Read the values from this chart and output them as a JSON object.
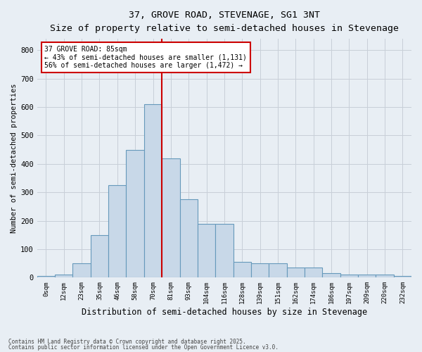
{
  "title": "37, GROVE ROAD, STEVENAGE, SG1 3NT",
  "subtitle": "Size of property relative to semi-detached houses in Stevenage",
  "xlabel": "Distribution of semi-detached houses by size in Stevenage",
  "ylabel": "Number of semi-detached properties",
  "categories": [
    "0sqm",
    "12sqm",
    "23sqm",
    "35sqm",
    "46sqm",
    "58sqm",
    "70sqm",
    "81sqm",
    "93sqm",
    "104sqm",
    "116sqm",
    "128sqm",
    "139sqm",
    "151sqm",
    "162sqm",
    "174sqm",
    "186sqm",
    "197sqm",
    "209sqm",
    "220sqm",
    "232sqm"
  ],
  "values": [
    5,
    10,
    50,
    150,
    325,
    450,
    610,
    420,
    275,
    190,
    190,
    55,
    50,
    50,
    35,
    35,
    15,
    10,
    10,
    10,
    5
  ],
  "bar_color": "#c8d8e8",
  "bar_edge_color": "#6699bb",
  "grid_color": "#c8cfd8",
  "bg_color": "#e8eef4",
  "marker_bin_index": 7,
  "annotation_title": "37 GROVE ROAD: 85sqm",
  "annotation_line1": "← 43% of semi-detached houses are smaller (1,131)",
  "annotation_line2": "56% of semi-detached houses are larger (1,472) →",
  "annotation_box_color": "#ffffff",
  "annotation_box_edge": "#cc0000",
  "marker_line_color": "#cc0000",
  "footnote1": "Contains HM Land Registry data © Crown copyright and database right 2025.",
  "footnote2": "Contains public sector information licensed under the Open Government Licence v3.0.",
  "ylim": [
    0,
    840
  ],
  "yticks": [
    0,
    100,
    200,
    300,
    400,
    500,
    600,
    700,
    800
  ]
}
